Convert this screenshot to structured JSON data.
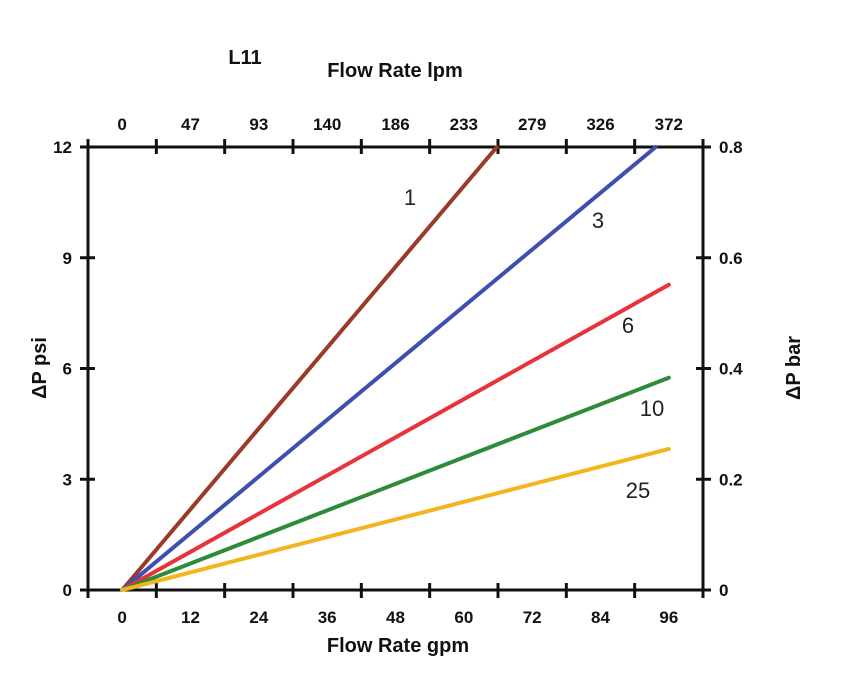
{
  "chart_data": {
    "type": "line",
    "title": "L11",
    "xlabel": "Flow Rate gpm",
    "x2label": "Flow Rate lpm",
    "ylabel": "ΔP psi",
    "y2label": "ΔP bar",
    "xlim": [
      -6,
      102
    ],
    "ylim": [
      0,
      12
    ],
    "x_ticks": [
      "0",
      "12",
      "24",
      "36",
      "48",
      "60",
      "72",
      "84",
      "96"
    ],
    "x2_ticks": [
      "0",
      "47",
      "93",
      "140",
      "186",
      "233",
      "279",
      "326",
      "372"
    ],
    "y_ticks": [
      "0",
      "3",
      "6",
      "9",
      "12"
    ],
    "y2_ticks": [
      "0",
      "0.2",
      "0.4",
      "0.6",
      "0.8"
    ],
    "grid": false,
    "series": [
      {
        "name": "1",
        "color": "#9b3a26",
        "x": [
          0,
          65.8
        ],
        "y": [
          0,
          12
        ]
      },
      {
        "name": "3",
        "color": "#3f4fb0",
        "x": [
          0,
          93.7
        ],
        "y": [
          0,
          12
        ]
      },
      {
        "name": "6",
        "color": "#e8333a",
        "x": [
          0,
          96
        ],
        "y": [
          0,
          8.27
        ]
      },
      {
        "name": "10",
        "color": "#2e8b3a",
        "x": [
          0,
          96
        ],
        "y": [
          0,
          5.75
        ]
      },
      {
        "name": "25",
        "color": "#f2b51c",
        "x": [
          0,
          96
        ],
        "y": [
          0,
          3.82
        ]
      }
    ]
  }
}
